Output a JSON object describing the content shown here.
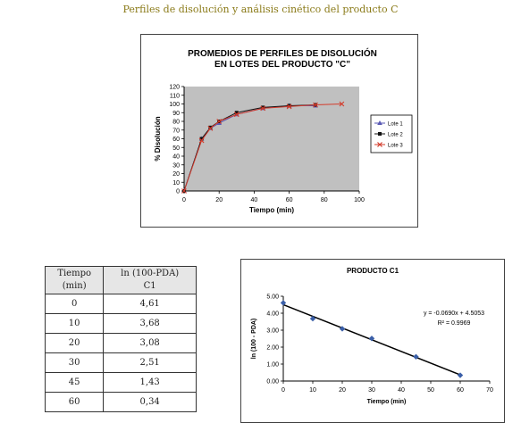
{
  "page_title": "Perfiles de disolución y análisis cinético del producto C",
  "table": {
    "headers": [
      [
        "Tiempo",
        "(min)"
      ],
      [
        "ln (100-PDA)",
        "C1"
      ]
    ],
    "rows": [
      [
        "0",
        "4,61"
      ],
      [
        "10",
        "3,68"
      ],
      [
        "20",
        "3,08"
      ],
      [
        "30",
        "2,51"
      ],
      [
        "45",
        "1,43"
      ],
      [
        "60",
        "0,34"
      ]
    ]
  },
  "chart_data": [
    {
      "type": "line",
      "title": [
        "PROMEDIOS DE PERFILES DE DISOLUCIÓN",
        "EN LOTES DEL PRODUCTO \"C\""
      ],
      "xlabel": "Tiempo (min)",
      "ylabel": "% Disolución",
      "xlim": [
        0,
        100
      ],
      "ylim": [
        0,
        120
      ],
      "xticks": [
        0,
        20,
        40,
        60,
        80,
        100
      ],
      "yticks": [
        0,
        10,
        20,
        30,
        40,
        50,
        60,
        70,
        80,
        90,
        100,
        110,
        120
      ],
      "grid": false,
      "plot_background": "#c0c0c0",
      "legend_position": "right",
      "series": [
        {
          "name": "Lote 1",
          "color": "#5a5ab4",
          "marker": "triangle",
          "x": [
            0,
            10,
            15,
            20,
            30,
            45,
            60,
            75
          ],
          "y": [
            0,
            60,
            72,
            78,
            88,
            95,
            98,
            98
          ]
        },
        {
          "name": "Lote 2",
          "color": "#111111",
          "marker": "square",
          "x": [
            0,
            10,
            15,
            20,
            30,
            45,
            60,
            75
          ],
          "y": [
            0,
            60,
            73,
            80,
            90,
            96,
            98,
            99
          ]
        },
        {
          "name": "Lote 3",
          "color": "#d33a2a",
          "marker": "cross",
          "x": [
            0,
            10,
            15,
            20,
            30,
            45,
            60,
            75,
            90
          ],
          "y": [
            0,
            58,
            72,
            80,
            88,
            95,
            97,
            99,
            100
          ]
        }
      ]
    },
    {
      "type": "scatter",
      "title": "PRODUCTO C1",
      "xlabel": "Tiempo (min)",
      "ylabel": "ln (100 - PDA)",
      "xlim": [
        0,
        70
      ],
      "ylim": [
        0,
        5
      ],
      "xticks": [
        0,
        10,
        20,
        30,
        40,
        50,
        60,
        70
      ],
      "yticks": [
        0,
        1,
        2,
        3,
        4,
        5
      ],
      "ytick_labels": [
        "0.00",
        "1.00",
        "2.00",
        "3.00",
        "4.00",
        "5.00"
      ],
      "grid": false,
      "color": "#3a5fa8",
      "series": [
        {
          "x": [
            0,
            10,
            20,
            30,
            45,
            60
          ],
          "y": [
            4.61,
            3.68,
            3.08,
            2.51,
            1.43,
            0.34
          ]
        }
      ],
      "trendline": {
        "slope": -0.069,
        "intercept": 4.5053,
        "x_range": [
          0,
          60
        ]
      },
      "annotations": [
        "y = -0.0690x + 4.5053",
        "R² = 0.9969"
      ]
    }
  ]
}
